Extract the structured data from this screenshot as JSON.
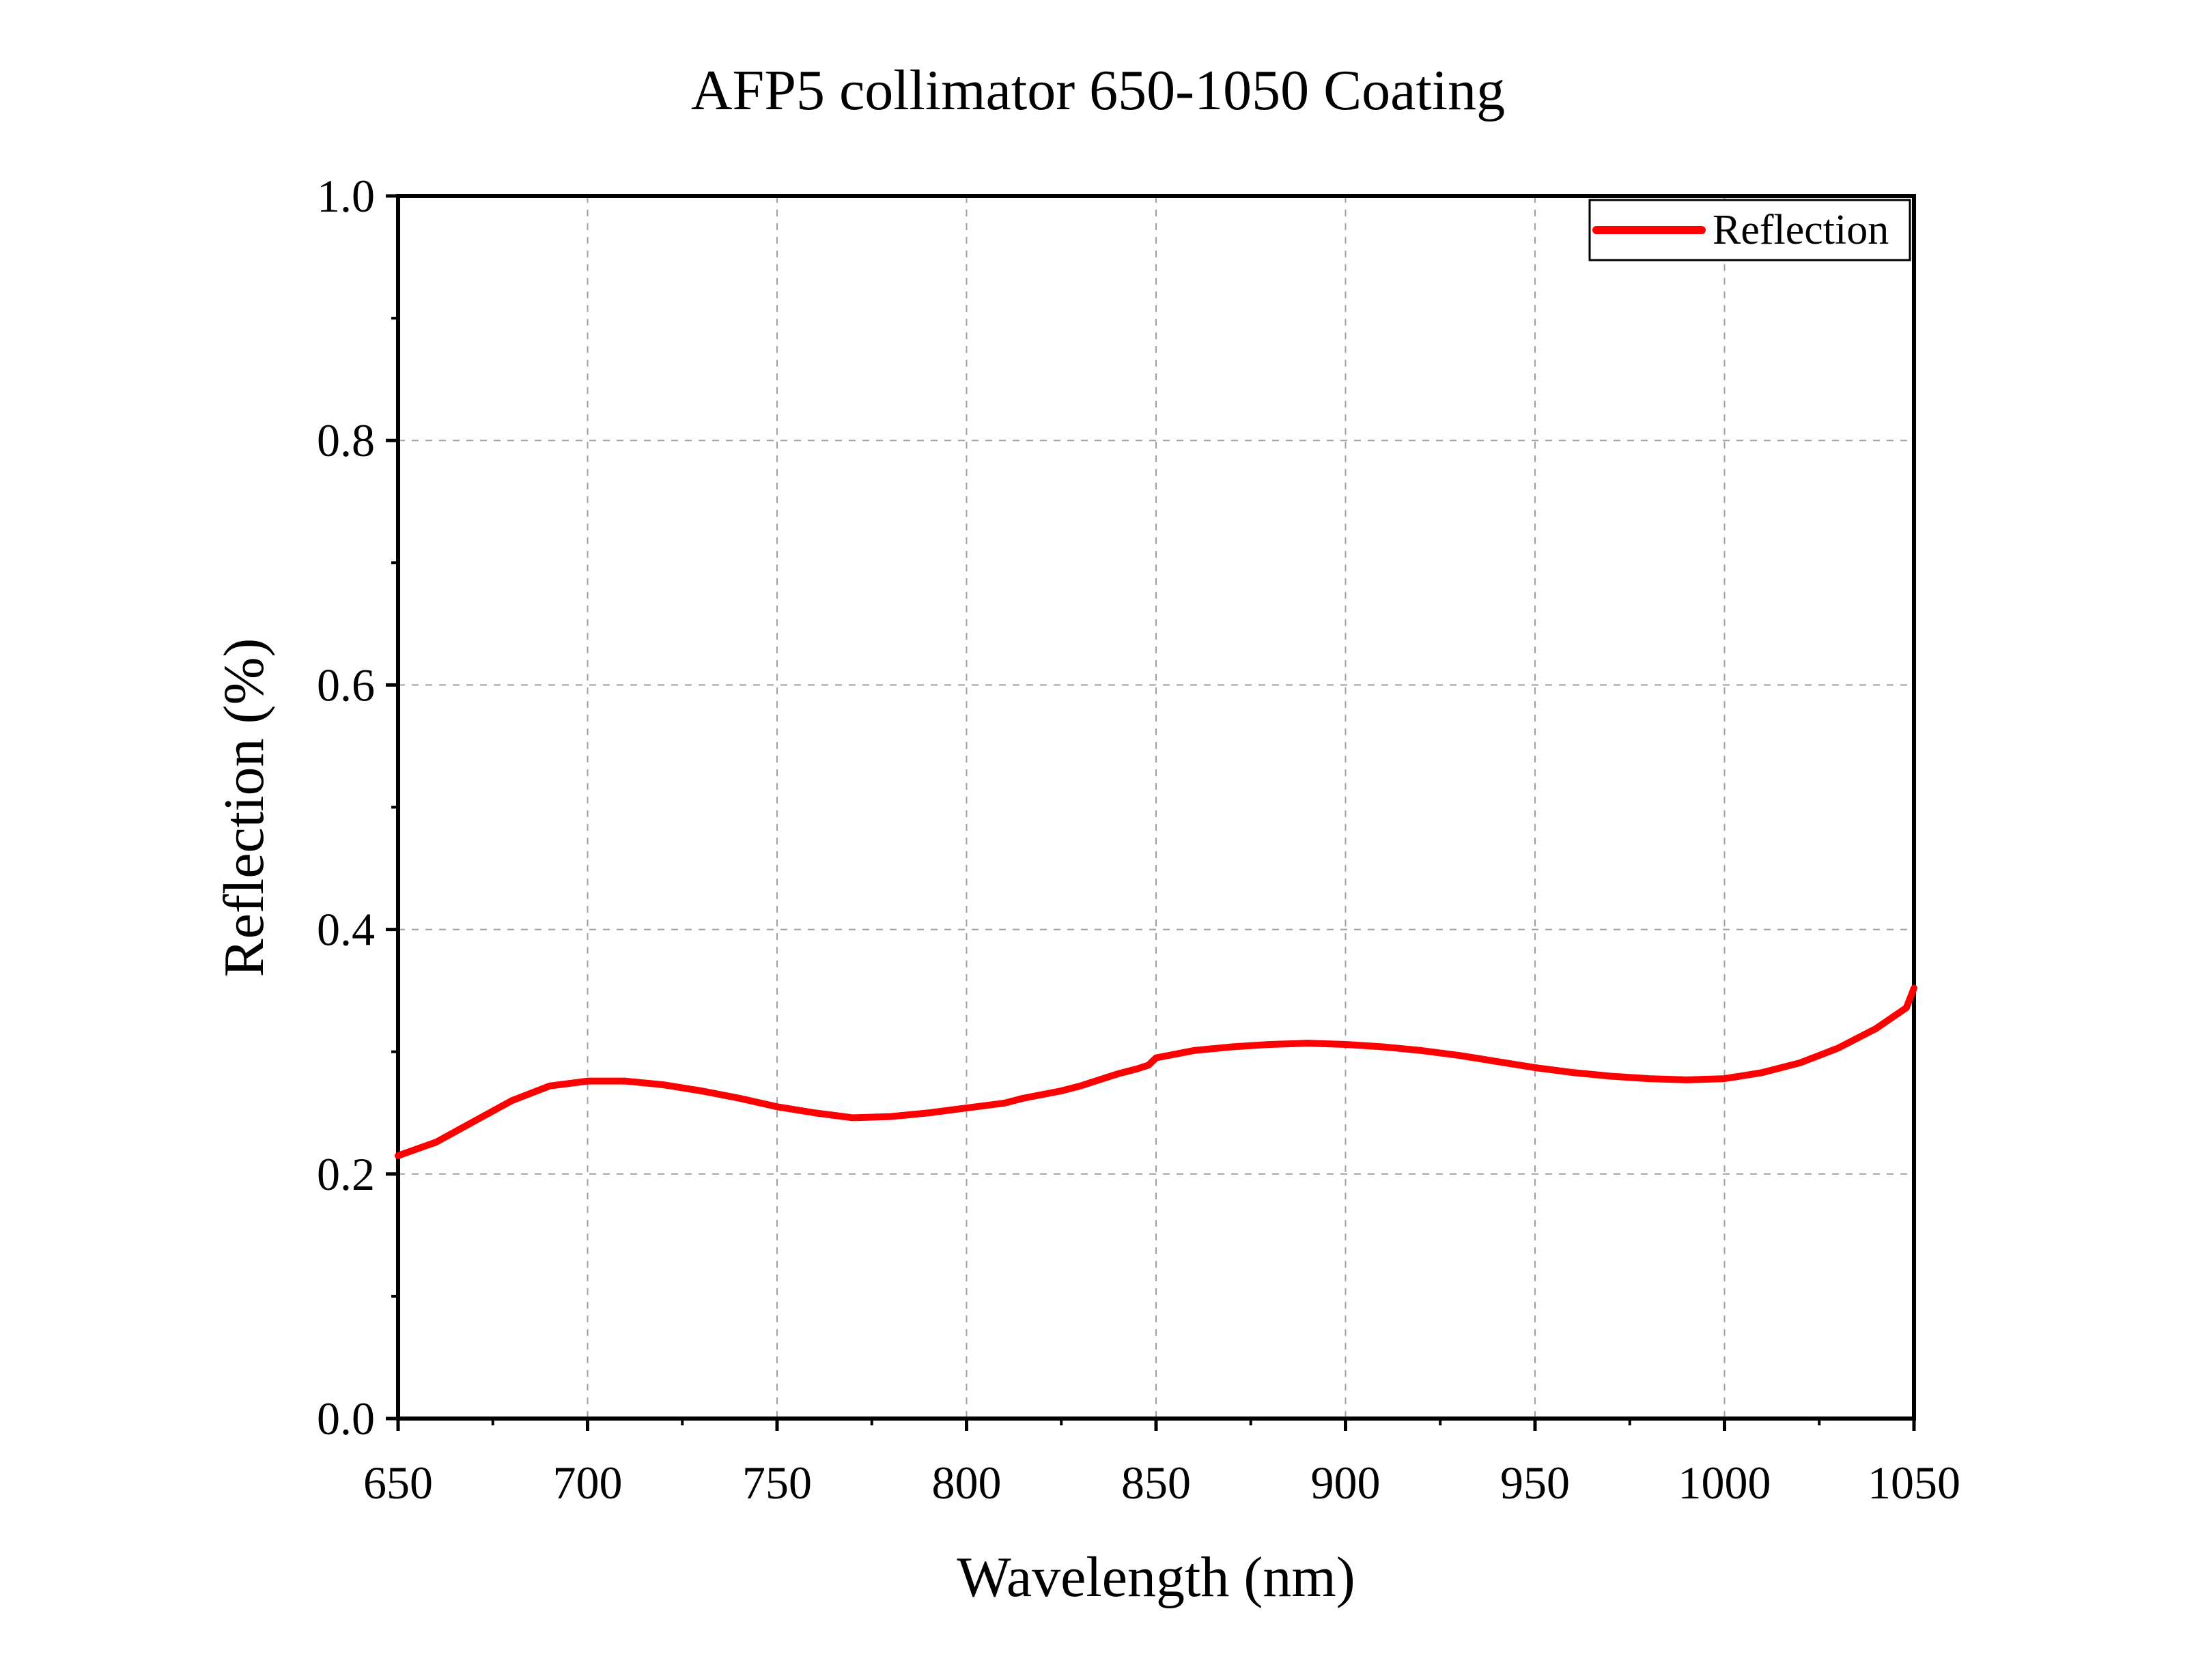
{
  "chart_data": {
    "type": "line",
    "title": "AFP5 collimator 650-1050 Coating",
    "xlabel": "Wavelength (nm)",
    "ylabel": "Reflection (%)",
    "xlim": [
      650,
      1050
    ],
    "ylim": [
      0.0,
      1.0
    ],
    "x_ticks": [
      "650",
      "700",
      "750",
      "800",
      "850",
      "900",
      "950",
      "1000",
      "1050"
    ],
    "y_ticks": [
      "0.0",
      "0.2",
      "0.4",
      "0.6",
      "0.8",
      "1.0"
    ],
    "grid": true,
    "legend_position": "top-right",
    "series": [
      {
        "name": "Reflection",
        "color": "#ff0000",
        "x": [
          650,
          660,
          670,
          680,
          690,
          700,
          710,
          720,
          730,
          740,
          750,
          760,
          770,
          780,
          790,
          800,
          810,
          815,
          820,
          825,
          830,
          835,
          840,
          845,
          848,
          850,
          860,
          870,
          880,
          890,
          900,
          910,
          920,
          930,
          940,
          950,
          960,
          970,
          980,
          990,
          1000,
          1010,
          1020,
          1030,
          1040,
          1048,
          1050
        ],
        "values": [
          0.215,
          0.226,
          0.243,
          0.26,
          0.272,
          0.276,
          0.276,
          0.273,
          0.268,
          0.262,
          0.255,
          0.25,
          0.246,
          0.247,
          0.25,
          0.254,
          0.258,
          0.262,
          0.265,
          0.268,
          0.272,
          0.277,
          0.282,
          0.286,
          0.289,
          0.295,
          0.301,
          0.304,
          0.306,
          0.307,
          0.306,
          0.304,
          0.301,
          0.297,
          0.292,
          0.287,
          0.283,
          0.28,
          0.278,
          0.277,
          0.278,
          0.283,
          0.291,
          0.303,
          0.319,
          0.336,
          0.352
        ]
      }
    ]
  }
}
